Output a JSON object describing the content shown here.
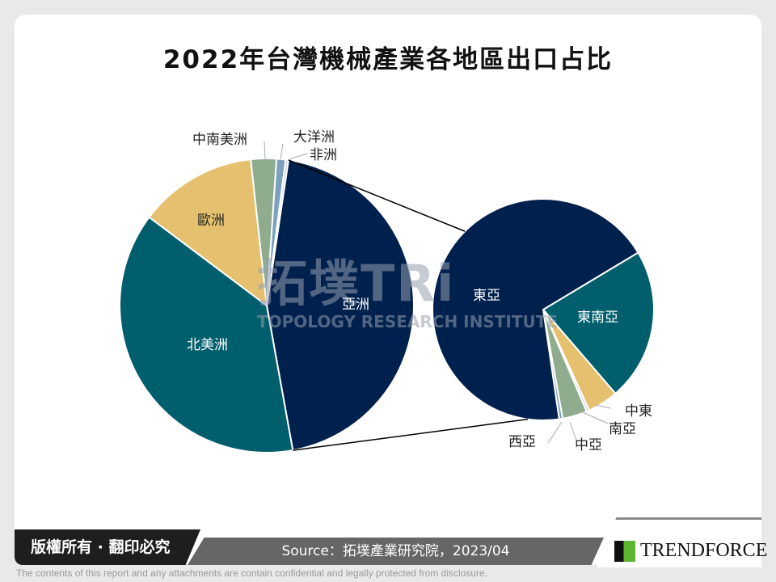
{
  "chart_data": [
    {
      "type": "pie",
      "title": "2022年台灣機械產業各地區出口占比",
      "categories": [
        "亞洲",
        "北美洲",
        "歐洲",
        "中南美洲",
        "大洋洲",
        "非洲"
      ],
      "values": [
        44.8,
        38.1,
        13.0,
        2.8,
        1.0,
        0.3
      ],
      "colors": [
        "#00204d",
        "#015e6c",
        "#e5c06e",
        "#8fac8e",
        "#7aa2bf",
        "#d8cde2"
      ],
      "unit": "%"
    },
    {
      "type": "pie",
      "parent_slice": "亞洲",
      "categories": [
        "東南亞",
        "中東",
        "南亞",
        "中亞",
        "西亞",
        "東亞"
      ],
      "values": [
        22.3,
        4.5,
        0.4,
        3.6,
        0.5,
        68.7
      ],
      "colors": [
        "#015e6c",
        "#e5c06e",
        "#d8cde2",
        "#8fac8e",
        "#7aa2bf",
        "#00204d"
      ],
      "unit": "%"
    }
  ],
  "title": "2022年台灣機械產業各地區出口占比",
  "watermark": {
    "line1": "拓墣TRi",
    "line2": "TOPOLOGY RESEARCH INSTITUTE"
  },
  "footer": {
    "copyright": "版權所有 · 翻印必究",
    "source": "Source：拓墣產業研究院，2023/04",
    "logo": "TRENDFORCE",
    "disclaimer": "The contents of this report and any attachments are contain confidential and legally protected from disclosure."
  }
}
